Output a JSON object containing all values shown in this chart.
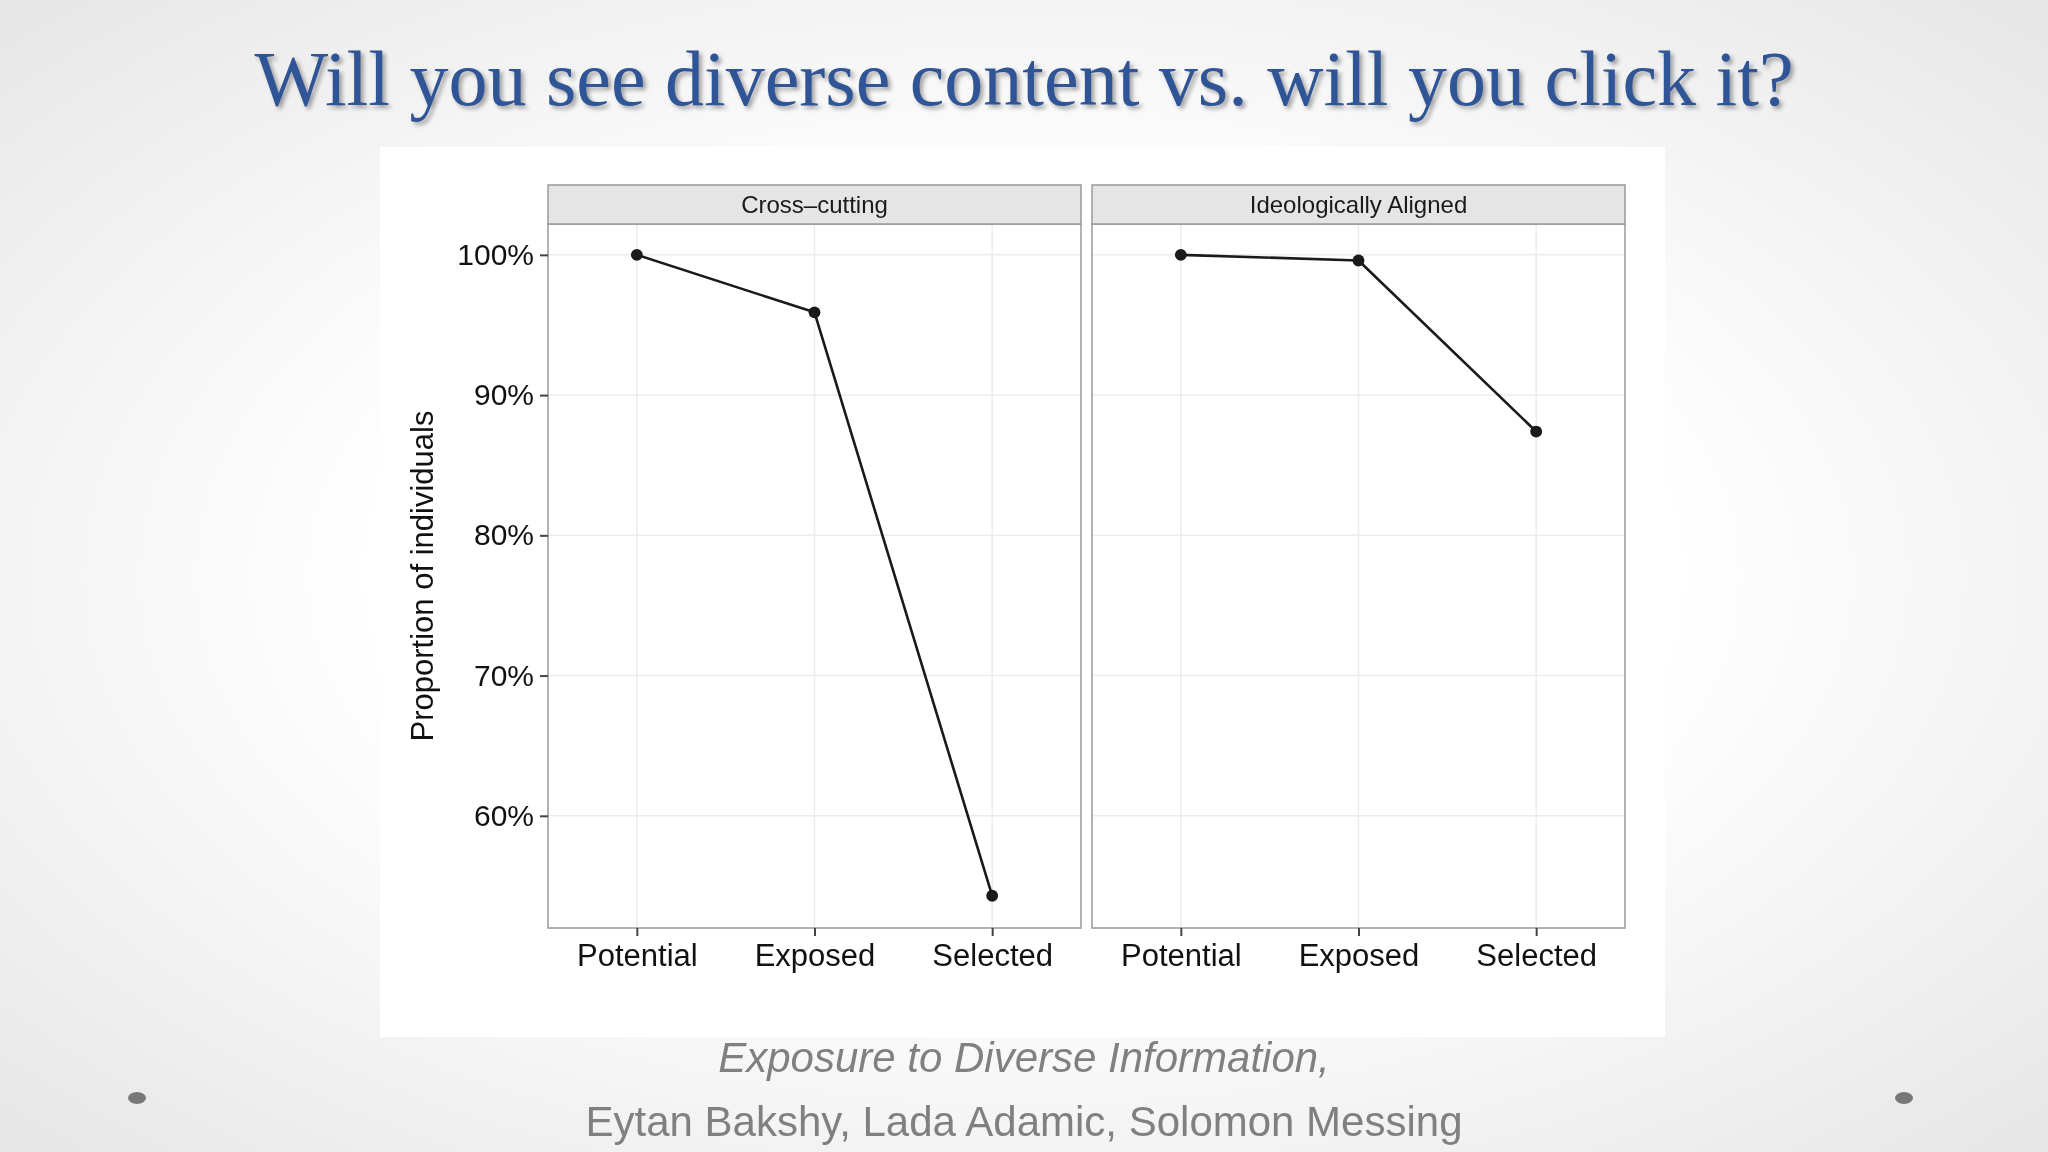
{
  "chart_data": [
    {
      "type": "line",
      "title": "Will you see diverse content vs. will you click it?",
      "subtitle": "Cross–cutting",
      "ylabel": "Proportion of individuals",
      "categories": [
        "Potential",
        "Exposed",
        "Selected"
      ],
      "series": [
        {
          "color": "#1a1a1a",
          "values": [
            100,
            95.9,
            54.3
          ]
        }
      ],
      "ylim": [
        52,
        102.2
      ],
      "yticks": [
        {
          "value": 60,
          "label": "60%"
        },
        {
          "value": 70,
          "label": "70%"
        },
        {
          "value": 80,
          "label": "80%"
        },
        {
          "value": 90,
          "label": "90%"
        },
        {
          "value": 100,
          "label": "100%"
        }
      ],
      "grid": true,
      "marker": "circle",
      "line_style": "solid",
      "annotations": [
        "Exposure to Diverse Information,",
        "Eytan Bakshy, Lada Adamic, Solomon Messing"
      ]
    },
    {
      "type": "line",
      "subtitle": "Ideologically Aligned",
      "categories": [
        "Potential",
        "Exposed",
        "Selected"
      ],
      "series": [
        {
          "color": "#1a1a1a",
          "values": [
            100,
            99.6,
            87.4
          ]
        }
      ],
      "ylim": [
        52,
        102.2
      ],
      "yticks": [
        {
          "value": 60,
          "label": null
        },
        {
          "value": 70,
          "label": null
        },
        {
          "value": 80,
          "label": null
        },
        {
          "value": 90,
          "label": null
        },
        {
          "value": 100,
          "label": null
        }
      ],
      "grid": true,
      "marker": "circle",
      "line_style": "solid",
      "tick_labels": "x"
    }
  ]
}
